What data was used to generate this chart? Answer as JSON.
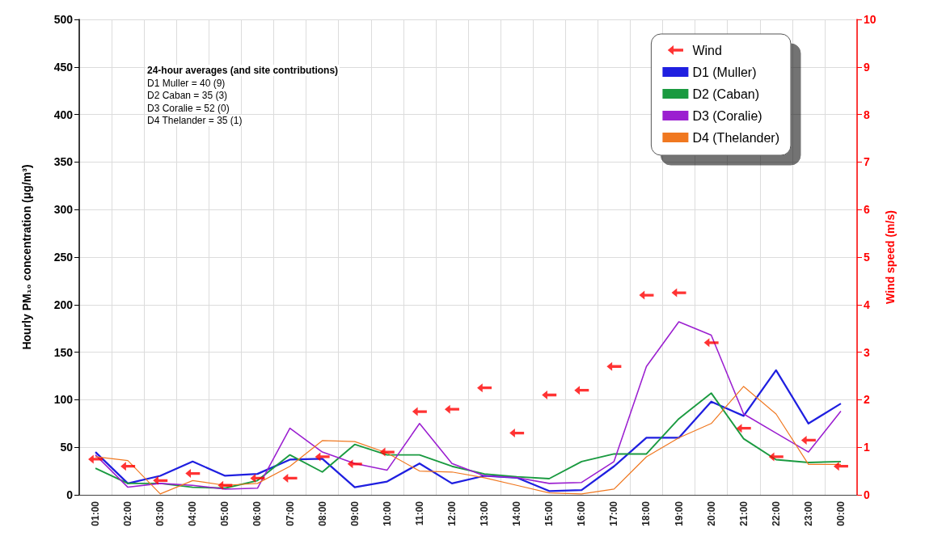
{
  "chart_data": {
    "type": "line",
    "ylabel": "Hourly PM₁₀ concentration (μg/m³)",
    "y2label": "Wind speed (m/s)",
    "annotations": [
      "24-hour averages (and site contributions)",
      "D1 Muller = 40 (9)",
      "D2 Caban = 35 (3)",
      "D3 Coralie = 52 (0)",
      "D4 Thelander = 35 (1)"
    ],
    "categories": [
      "01:00",
      "02:00",
      "03:00",
      "04:00",
      "05:00",
      "06:00",
      "07:00",
      "08:00",
      "09:00",
      "10:00",
      "11:00",
      "12:00",
      "13:00",
      "14:00",
      "15:00",
      "16:00",
      "17:00",
      "18:00",
      "19:00",
      "20:00",
      "21:00",
      "22:00",
      "23:00",
      "00:00"
    ],
    "series": [
      {
        "name": "Wind",
        "type": "scatter",
        "axis": "y2",
        "color": "#ff0000",
        "values": [
          0.75,
          0.6,
          0.3,
          0.45,
          0.2,
          0.35,
          0.35,
          0.8,
          0.65,
          0.9,
          1.75,
          1.8,
          2.25,
          1.3,
          2.1,
          2.2,
          2.7,
          4.2,
          4.25,
          3.2,
          1.4,
          0.8,
          1.15,
          0.6
        ]
      },
      {
        "name": "D1 (Muller)",
        "color": "#1f1fe0",
        "values": [
          45,
          12,
          20,
          35,
          20,
          22,
          37,
          38,
          8,
          14,
          33,
          12,
          20,
          18,
          4,
          5,
          30,
          60,
          60,
          98,
          83,
          131,
          75,
          96
        ]
      },
      {
        "name": "D2 (Caban)",
        "color": "#1a9a40",
        "values": [
          28,
          12,
          12,
          8,
          7,
          15,
          42,
          24,
          53,
          42,
          42,
          30,
          22,
          19,
          17,
          35,
          43,
          43,
          80,
          107,
          59,
          37,
          34,
          35
        ]
      },
      {
        "name": "D3 (Coralie)",
        "color": "#9b1fd0",
        "values": [
          42,
          8,
          12,
          10,
          6,
          7,
          70,
          45,
          33,
          26,
          75,
          33,
          20,
          18,
          12,
          13,
          35,
          135,
          182,
          168,
          85,
          65,
          45,
          88
        ]
      },
      {
        "name": "D4 (Thelander)",
        "color": "#f07820",
        "values": [
          40,
          36,
          1,
          15,
          10,
          12,
          30,
          57,
          56,
          44,
          25,
          24,
          18,
          10,
          2,
          1,
          6,
          40,
          60,
          75,
          114,
          85,
          32,
          32
        ]
      }
    ],
    "ylim": [
      0,
      500
    ],
    "yticks": [
      0,
      50,
      100,
      150,
      200,
      250,
      300,
      350,
      400,
      450,
      500
    ],
    "y2lim": [
      0,
      10
    ],
    "y2ticks": [
      0,
      1,
      2,
      3,
      4,
      5,
      6,
      7,
      8,
      9,
      10
    ],
    "grid": true,
    "legend": "top right",
    "marker": "none"
  }
}
